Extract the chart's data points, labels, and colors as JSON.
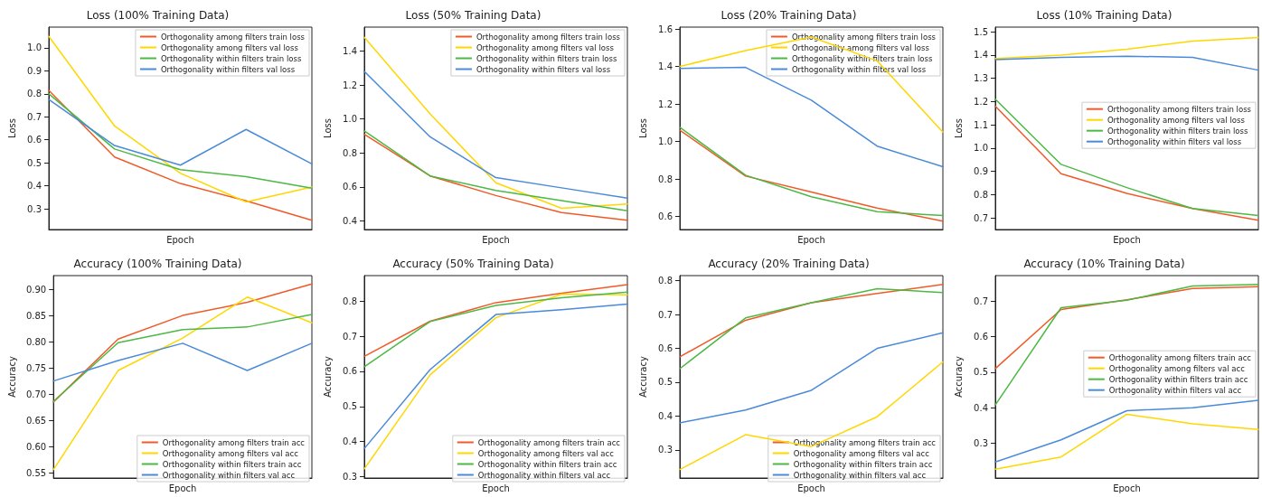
{
  "chart_data": [
    {
      "type": "line",
      "title": "Loss (100% Training Data)",
      "xlabel": "Epoch",
      "ylabel": "Loss",
      "categories": [
        null,
        null,
        null,
        null,
        null
      ],
      "ylim": [
        0.21,
        1.09
      ],
      "yticks": [
        0.3,
        0.4,
        0.5,
        0.6,
        0.7,
        0.8,
        0.9,
        {
          "value": 1,
          "label": "1.0"
        }
      ],
      "grid": false,
      "legend": "top right",
      "tick_labels": "y",
      "marker": "none",
      "line_style": "solid",
      "series": [
        {
          "name": "Orthogonality among filters train loss",
          "color": "#f05a28",
          "values": [
            0.815,
            0.525,
            0.41,
            0.335,
            0.25
          ]
        },
        {
          "name": "Orthogonality among filters val loss",
          "color": "#ffd700",
          "values": [
            1.05,
            0.66,
            0.455,
            0.33,
            0.395
          ]
        },
        {
          "name": "Orthogonality within filters train loss",
          "color": "#4cb944",
          "values": [
            0.8,
            0.56,
            0.47,
            0.44,
            0.39
          ]
        },
        {
          "name": "Orthogonality within filters val loss",
          "color": "#4a8ad8",
          "values": [
            0.775,
            0.575,
            0.49,
            0.645,
            0.495
          ]
        }
      ]
    },
    {
      "type": "line",
      "title": "Loss (50% Training Data)",
      "xlabel": "Epoch",
      "ylabel": "Loss",
      "categories": [
        null,
        null,
        null,
        null,
        null
      ],
      "ylim": [
        0.35,
        1.54
      ],
      "yticks": [
        0.4,
        0.6,
        0.8,
        {
          "value": 1,
          "label": "1.0"
        },
        1.2,
        1.4
      ],
      "grid": false,
      "legend": "top right",
      "tick_labels": "y",
      "marker": "none",
      "line_style": "solid",
      "series": [
        {
          "name": "Orthogonality among filters train loss",
          "color": "#f05a28",
          "values": [
            0.91,
            0.665,
            0.55,
            0.45,
            0.405
          ]
        },
        {
          "name": "Orthogonality among filters val loss",
          "color": "#ffd700",
          "values": [
            1.48,
            1.03,
            0.625,
            0.475,
            0.5
          ]
        },
        {
          "name": "Orthogonality within filters train loss",
          "color": "#4cb944",
          "values": [
            0.93,
            0.665,
            0.58,
            0.52,
            0.46
          ]
        },
        {
          "name": "Orthogonality within filters val loss",
          "color": "#4a8ad8",
          "values": [
            1.28,
            0.895,
            0.655,
            0.595,
            0.535
          ]
        }
      ]
    },
    {
      "type": "line",
      "title": "Loss (20% Training Data)",
      "xlabel": "Epoch",
      "ylabel": "Loss",
      "categories": [
        null,
        null,
        null,
        null,
        null
      ],
      "ylim": [
        0.53,
        1.61
      ],
      "yticks": [
        0.6,
        0.8,
        {
          "value": 1,
          "label": "1.0"
        },
        1.2,
        1.4,
        1.6
      ],
      "grid": false,
      "legend": "top right",
      "tick_labels": "y",
      "marker": "none",
      "line_style": "solid",
      "series": [
        {
          "name": "Orthogonality among filters train loss",
          "color": "#f05a28",
          "values": [
            1.06,
            0.815,
            0.73,
            0.645,
            0.575
          ]
        },
        {
          "name": "Orthogonality among filters val loss",
          "color": "#ffd700",
          "values": [
            1.4,
            1.485,
            1.557,
            1.43,
            1.05
          ]
        },
        {
          "name": "Orthogonality within filters train loss",
          "color": "#4cb944",
          "values": [
            1.075,
            0.82,
            0.705,
            0.625,
            0.605
          ]
        },
        {
          "name": "Orthogonality within filters val loss",
          "color": "#4a8ad8",
          "values": [
            1.39,
            1.395,
            1.22,
            0.975,
            0.865
          ]
        }
      ]
    },
    {
      "type": "line",
      "title": "Loss (10% Training Data)",
      "xlabel": "Epoch",
      "ylabel": "Loss",
      "categories": [
        null,
        null,
        null,
        null,
        null
      ],
      "ylim": [
        0.65,
        1.52
      ],
      "yticks": [
        0.7,
        0.8,
        0.9,
        {
          "value": 1,
          "label": "1.0"
        },
        1.1,
        1.2,
        1.3,
        1.4,
        1.5
      ],
      "grid": false,
      "legend": "right",
      "tick_labels": "y",
      "marker": "none",
      "line_style": "solid",
      "series": [
        {
          "name": "Orthogonality among filters train loss",
          "color": "#f05a28",
          "values": [
            1.18,
            0.89,
            0.805,
            0.74,
            0.69
          ]
        },
        {
          "name": "Orthogonality among filters val loss",
          "color": "#ffd700",
          "values": [
            1.385,
            1.4,
            1.425,
            1.46,
            1.475
          ]
        },
        {
          "name": "Orthogonality within filters train loss",
          "color": "#4cb944",
          "values": [
            1.21,
            0.93,
            0.83,
            0.74,
            0.71
          ]
        },
        {
          "name": "Orthogonality within filters val loss",
          "color": "#4a8ad8",
          "values": [
            1.38,
            1.39,
            1.395,
            1.39,
            1.335
          ]
        }
      ]
    },
    {
      "type": "line",
      "title": "Accuracy (100% Training Data)",
      "xlabel": "Epoch",
      "ylabel": "Accuracy",
      "categories": [
        null,
        null,
        null,
        null,
        null
      ],
      "ylim": [
        0.54,
        0.926
      ],
      "yticks": [
        0.55,
        {
          "value": 0.6,
          "label": "0.60"
        },
        0.65,
        {
          "value": 0.7,
          "label": "0.70"
        },
        0.75,
        {
          "value": 0.8,
          "label": "0.80"
        },
        0.85,
        {
          "value": 0.9,
          "label": "0.90"
        }
      ],
      "grid": false,
      "legend": "bottom right",
      "tick_labels": "y",
      "marker": "none",
      "line_style": "solid",
      "series": [
        {
          "name": "Orthogonality among filters train acc",
          "color": "#f05a28",
          "values": [
            0.685,
            0.805,
            0.85,
            0.875,
            0.91
          ]
        },
        {
          "name": "Orthogonality among filters val acc",
          "color": "#ffd700",
          "values": [
            0.556,
            0.745,
            0.807,
            0.885,
            0.836
          ]
        },
        {
          "name": "Orthogonality within filters train acc",
          "color": "#4cb944",
          "values": [
            0.686,
            0.798,
            0.823,
            0.828,
            0.852
          ]
        },
        {
          "name": "Orthogonality within filters val acc",
          "color": "#4a8ad8",
          "values": [
            0.725,
            0.764,
            0.797,
            0.745,
            0.797
          ]
        }
      ]
    },
    {
      "type": "line",
      "title": "Accuracy (50% Training Data)",
      "xlabel": "Epoch",
      "ylabel": "Accuracy",
      "categories": [
        null,
        null,
        null,
        null,
        null
      ],
      "ylim": [
        0.296,
        0.873
      ],
      "yticks": [
        0.3,
        0.4,
        0.5,
        0.6,
        0.7,
        0.8
      ],
      "grid": false,
      "legend": "bottom right",
      "tick_labels": "y",
      "marker": "none",
      "line_style": "solid",
      "series": [
        {
          "name": "Orthogonality among filters train acc",
          "color": "#f05a28",
          "values": [
            0.643,
            0.743,
            0.796,
            0.823,
            0.847
          ]
        },
        {
          "name": "Orthogonality among filters val acc",
          "color": "#ffd700",
          "values": [
            0.322,
            0.59,
            0.753,
            0.82,
            0.818
          ]
        },
        {
          "name": "Orthogonality within filters train acc",
          "color": "#4cb944",
          "values": [
            0.613,
            0.742,
            0.788,
            0.81,
            0.826
          ]
        },
        {
          "name": "Orthogonality within filters val acc",
          "color": "#4a8ad8",
          "values": [
            0.38,
            0.605,
            0.762,
            0.776,
            0.792
          ]
        }
      ]
    },
    {
      "type": "line",
      "title": "Accuracy (20% Training Data)",
      "xlabel": "Epoch",
      "ylabel": "Accuracy",
      "categories": [
        null,
        null,
        null,
        null,
        null
      ],
      "ylim": [
        0.217,
        0.815
      ],
      "yticks": [
        0.3,
        0.4,
        0.5,
        0.6,
        0.7,
        0.8
      ],
      "grid": false,
      "legend": "bottom right",
      "tick_labels": "y",
      "marker": "none",
      "line_style": "solid",
      "series": [
        {
          "name": "Orthogonality among filters train acc",
          "color": "#f05a28",
          "values": [
            0.575,
            0.683,
            0.735,
            0.762,
            0.789
          ]
        },
        {
          "name": "Orthogonality among filters val acc",
          "color": "#ffd700",
          "values": [
            0.242,
            0.345,
            0.31,
            0.398,
            0.56
          ]
        },
        {
          "name": "Orthogonality within filters train acc",
          "color": "#4cb944",
          "values": [
            0.54,
            0.69,
            0.735,
            0.776,
            0.765
          ]
        },
        {
          "name": "Orthogonality within filters val acc",
          "color": "#4a8ad8",
          "values": [
            0.38,
            0.418,
            0.476,
            0.6,
            0.646
          ]
        }
      ]
    },
    {
      "type": "line",
      "title": "Accuracy (10% Training Data)",
      "xlabel": "Epoch",
      "ylabel": "Accuracy",
      "categories": [
        null,
        null,
        null,
        null,
        null
      ],
      "ylim": [
        0.203,
        0.771
      ],
      "yticks": [
        0.3,
        0.4,
        0.5,
        0.6,
        0.7
      ],
      "grid": false,
      "legend": "right",
      "tick_labels": "y",
      "marker": "none",
      "line_style": "solid",
      "series": [
        {
          "name": "Orthogonality among filters train acc",
          "color": "#f05a28",
          "values": [
            0.51,
            0.676,
            0.703,
            0.735,
            0.74
          ]
        },
        {
          "name": "Orthogonality among filters val acc",
          "color": "#ffd700",
          "values": [
            0.228,
            0.262,
            0.382,
            0.355,
            0.339
          ]
        },
        {
          "name": "Orthogonality within filters train acc",
          "color": "#4cb944",
          "values": [
            0.408,
            0.681,
            0.702,
            0.742,
            0.746
          ]
        },
        {
          "name": "Orthogonality within filters val acc",
          "color": "#4a8ad8",
          "values": [
            0.248,
            0.31,
            0.392,
            0.4,
            0.421
          ]
        }
      ]
    }
  ]
}
